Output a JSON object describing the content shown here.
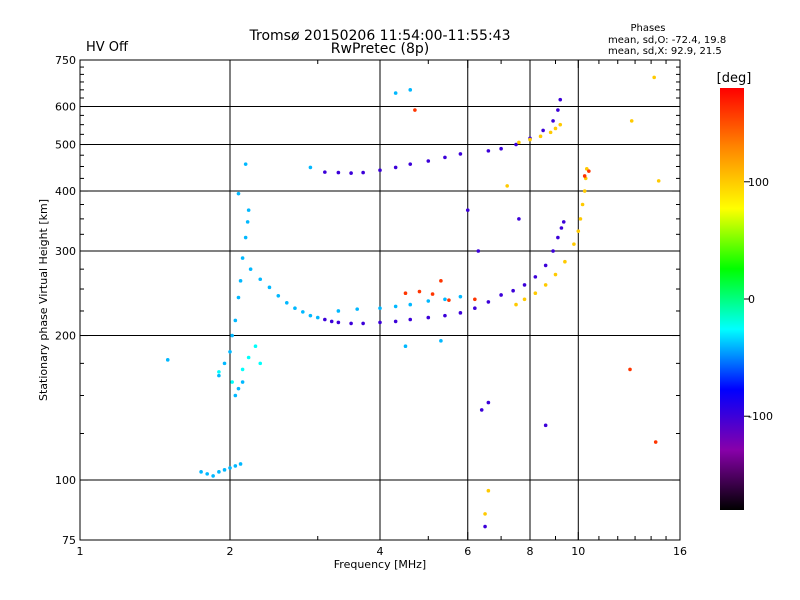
{
  "header": {
    "hv_status": "HV Off",
    "hv_color": "#cc0000",
    "title_line1": "Tromsø 20150206 11:54:00-11:55:43",
    "title_line2": "RwPretec (8p)",
    "phases_title": "Phases",
    "phases_line1": "mean, sd,O: -72.4, 19.8",
    "phases_line2": "mean, sd,X:  92.9, 21.5"
  },
  "chart_data": {
    "type": "scatter",
    "xlabel": "Frequency [MHz]",
    "ylabel": "Stationary phase Virtual Height [km]",
    "x_scale": "log",
    "y_scale": "log",
    "xlim": [
      1,
      16
    ],
    "ylim": [
      75,
      750
    ],
    "x_ticks": [
      1,
      2,
      4,
      6,
      8,
      10,
      16
    ],
    "y_ticks": [
      75,
      100,
      200,
      300,
      400,
      500,
      600,
      750
    ],
    "x_grid": [
      2,
      4,
      6,
      8,
      10
    ],
    "y_grid": [
      100,
      200,
      300,
      400,
      500,
      600
    ],
    "grid": true,
    "colorbar": {
      "label": "[deg]",
      "range": [
        -180,
        180
      ],
      "ticks": [
        100,
        0,
        -100
      ],
      "stops": [
        "#ff0000",
        "#ff8800",
        "#ffff00",
        "#00ff00",
        "#00ffff",
        "#0000ff",
        "#8800aa",
        "#000000"
      ]
    },
    "series": [
      {
        "mode": "O",
        "color_phase": -100,
        "points": [
          [
            3.1,
            216
          ],
          [
            3.2,
            214
          ],
          [
            3.3,
            213
          ],
          [
            3.5,
            212
          ],
          [
            3.7,
            212
          ],
          [
            4.0,
            213
          ],
          [
            4.3,
            214
          ],
          [
            4.6,
            216
          ],
          [
            5.0,
            218
          ],
          [
            5.4,
            220
          ],
          [
            5.8,
            223
          ],
          [
            6.2,
            228
          ],
          [
            6.6,
            235
          ],
          [
            7.0,
            243
          ],
          [
            7.4,
            248
          ],
          [
            7.8,
            255
          ],
          [
            8.2,
            265
          ],
          [
            8.6,
            280
          ],
          [
            8.9,
            300
          ],
          [
            9.1,
            320
          ],
          [
            9.25,
            335
          ],
          [
            9.35,
            345
          ],
          [
            3.1,
            438
          ],
          [
            3.3,
            437
          ],
          [
            3.5,
            436
          ],
          [
            3.7,
            437
          ],
          [
            4.0,
            442
          ],
          [
            4.3,
            448
          ],
          [
            4.6,
            455
          ],
          [
            5.0,
            462
          ],
          [
            5.4,
            470
          ],
          [
            5.8,
            478
          ],
          [
            6.6,
            485
          ],
          [
            7.0,
            490
          ],
          [
            7.5,
            500
          ],
          [
            8.0,
            515
          ],
          [
            8.5,
            535
          ],
          [
            8.9,
            560
          ],
          [
            9.1,
            590
          ],
          [
            9.2,
            620
          ],
          [
            6.0,
            365
          ],
          [
            6.3,
            300
          ],
          [
            6.4,
            140
          ],
          [
            6.5,
            80
          ],
          [
            6.6,
            145
          ],
          [
            7.6,
            350
          ],
          [
            8.6,
            130
          ]
        ]
      },
      {
        "mode": "X",
        "color_phase": 100,
        "points": [
          [
            7.5,
            232
          ],
          [
            7.8,
            238
          ],
          [
            8.2,
            245
          ],
          [
            8.6,
            255
          ],
          [
            9.0,
            268
          ],
          [
            9.4,
            285
          ],
          [
            9.8,
            310
          ],
          [
            10.0,
            330
          ],
          [
            10.1,
            350
          ],
          [
            10.2,
            375
          ],
          [
            10.3,
            400
          ],
          [
            10.35,
            425
          ],
          [
            10.4,
            445
          ],
          [
            7.6,
            505
          ],
          [
            8.0,
            512
          ],
          [
            8.4,
            520
          ],
          [
            8.8,
            530
          ],
          [
            9.0,
            540
          ],
          [
            9.2,
            550
          ],
          [
            6.5,
            85
          ],
          [
            6.6,
            95
          ],
          [
            7.2,
            410
          ],
          [
            12.8,
            560
          ],
          [
            14.2,
            690
          ],
          [
            14.5,
            420
          ]
        ]
      },
      {
        "mode": "O",
        "color_phase": -40,
        "points": [
          [
            1.75,
            104
          ],
          [
            1.8,
            103
          ],
          [
            1.85,
            102
          ],
          [
            1.9,
            104
          ],
          [
            1.95,
            105
          ],
          [
            2.0,
            106
          ],
          [
            2.05,
            107
          ],
          [
            2.1,
            108
          ],
          [
            1.9,
            165
          ],
          [
            1.95,
            175
          ],
          [
            2.0,
            185
          ],
          [
            2.02,
            200
          ],
          [
            2.05,
            215
          ],
          [
            2.08,
            240
          ],
          [
            2.1,
            260
          ],
          [
            2.12,
            290
          ],
          [
            2.15,
            320
          ],
          [
            2.17,
            345
          ],
          [
            2.18,
            365
          ],
          [
            2.05,
            150
          ],
          [
            2.08,
            155
          ],
          [
            2.12,
            160
          ],
          [
            2.2,
            275
          ],
          [
            2.3,
            262
          ],
          [
            2.4,
            252
          ],
          [
            2.5,
            242
          ],
          [
            2.6,
            234
          ],
          [
            2.7,
            228
          ],
          [
            2.8,
            224
          ],
          [
            2.9,
            220
          ],
          [
            3.0,
            218
          ],
          [
            3.3,
            225
          ],
          [
            3.6,
            227
          ],
          [
            4.0,
            228
          ],
          [
            4.3,
            230
          ],
          [
            4.6,
            232
          ],
          [
            5.0,
            236
          ],
          [
            5.4,
            238
          ],
          [
            5.8,
            241
          ],
          [
            2.08,
            395
          ],
          [
            2.15,
            455
          ],
          [
            2.9,
            448
          ],
          [
            4.3,
            640
          ],
          [
            4.6,
            650
          ],
          [
            5.3,
            195
          ],
          [
            4.5,
            190
          ],
          [
            1.5,
            178
          ]
        ]
      },
      {
        "mode": "O-low",
        "color_phase": -25,
        "points": [
          [
            2.12,
            170
          ],
          [
            2.18,
            180
          ],
          [
            2.25,
            190
          ],
          [
            2.3,
            175
          ],
          [
            1.9,
            168
          ],
          [
            2.02,
            160
          ]
        ]
      },
      {
        "mode": "X-mid",
        "color_phase": 160,
        "points": [
          [
            4.5,
            245
          ],
          [
            4.8,
            247
          ],
          [
            5.1,
            244
          ],
          [
            5.5,
            237
          ],
          [
            6.2,
            238
          ],
          [
            10.3,
            430
          ],
          [
            10.5,
            440
          ],
          [
            4.7,
            590
          ],
          [
            5.3,
            260
          ],
          [
            14.3,
            120
          ],
          [
            12.7,
            170
          ]
        ]
      }
    ]
  }
}
